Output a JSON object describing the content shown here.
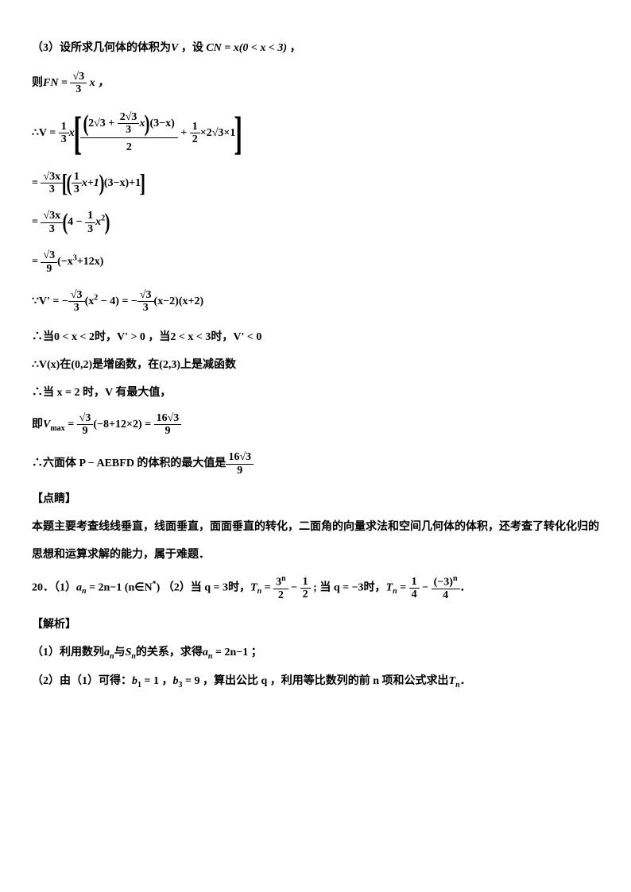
{
  "page": {
    "background_color": "#ffffff",
    "text_color": "#000000",
    "font_family": "SimSun/宋体 + Times New Roman",
    "font_size_pt": 11,
    "font_weight": "bold"
  },
  "lines": {
    "l1a": "（3）设所求几何体的体积为",
    "l1b": " ，设",
    "l1c": " CN = x(0 < x < 3) ",
    "l1d": "，",
    "V": "V",
    "l2a": "则",
    "l2b": "FN = ",
    "l2c": " x ，",
    "frac_sqrt3_3_num": "√3",
    "frac_sqrt3_3_den": "3",
    "l3a": "∴V = ",
    "frac_1_3_num": "1",
    "frac_1_3_den": "3",
    "l3b": "x",
    "bigexpr_top_a": "2√3 + ",
    "bigexpr_top_b": "2√3",
    "bigexpr_top_c": "3",
    "bigexpr_top_d": "x",
    "bigexpr_top_e": "(3−x)",
    "bigexpr_den": "2",
    "l3c": " + ",
    "frac_1_2_num": "1",
    "frac_1_2_den": "2",
    "l3d": "×2√3×1",
    "l4a": "= ",
    "l4_fracnum": "√3x",
    "l4_fracden": "3",
    "l4b": "x+1",
    "l4c": "(3−x)+1",
    "l5a": "= ",
    "l5b": "4 − ",
    "l5c": "x",
    "sup2": "2",
    "l6a": "= ",
    "frac_sqrt3_9_num": "√3",
    "frac_sqrt3_9_den": "9",
    "l6b": "(−x",
    "sup3": "3",
    "l6c": "+12x)",
    "l7a": "∵V' = −",
    "l7b": "(x",
    "l7c": " − 4) = −",
    "l7d": "(x−2)(x+2)",
    "l8": "∴当0 < x < 2时，V' > 0 ，当2 < x < 3时，V' < 0",
    "l9": "∴V(x)在(0,2)是增函数，在(2,3)上是减函数",
    "l10": "∴当 x = 2 时，V 有最大值，",
    "l11a": "即",
    "l11b": "V",
    "l11sub": "max",
    "l11c": " = ",
    "l11d": "(−8+12×2) = ",
    "frac_16sqrt3_9_num": "16√3",
    "frac_16sqrt3_9_den": "9",
    "l12a": "∴六面体 P − AEBFD 的体积的最大值是",
    "l13": "【点睛】",
    "l14": "本题主要考查线线垂直，线面垂直，面面垂直的转化，二面角的向量求法和空间几何体的体积，还考查了转化化归的",
    "l15": "思想和运算求解的能力，属于难题．",
    "l16a": "20．（1）",
    "l16b": "a",
    "l16sub_n": "n",
    "l16c": " = 2n−1 (n∈N",
    "l16supstar": "*",
    "l16d": ") （2）当 q = 3时，",
    "l16Tn": "T",
    "l16e": " = ",
    "frac_3n_2_num": "3",
    "frac_3n_2_supn": "n",
    "frac_3n_2_den": "2",
    "l16f": " − ",
    "l16g": " ; 当 q = −3时，",
    "l16h": " = ",
    "frac_1_4_num": "1",
    "frac_1_4_den": "4",
    "l16i": " − ",
    "frac_m3n_4_num": "(−3)",
    "frac_m3n_4_den": "4",
    "l16j": "．",
    "l17": "【解析】",
    "l18a": "（1）利用数列",
    "l18b": "与",
    "l18Sn": "S",
    "l18c": "的关系，求得",
    "l18d": " = 2n−1 ；",
    "l19a": "（2）由（1）可得：",
    "l19b": "b",
    "l19sub1": "1",
    "l19c": " = 1 ，",
    "l19sub3": "3",
    "l19d": " = 9 ，算出公比 q ，利用等比数列的前 n 项和公式求出",
    "l19e": "．"
  }
}
